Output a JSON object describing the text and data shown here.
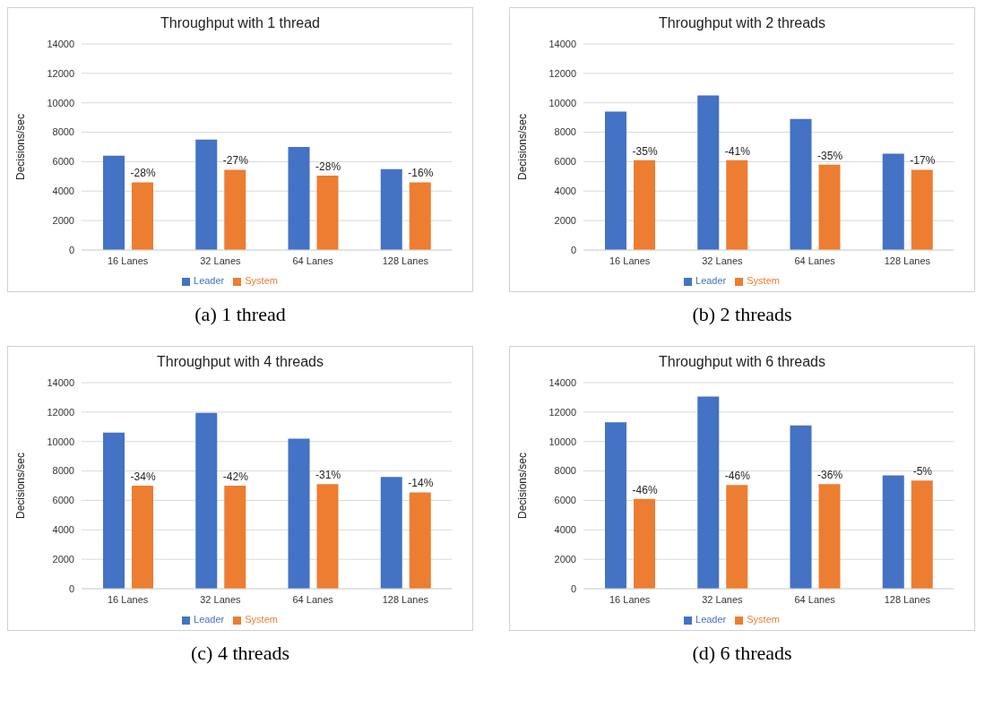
{
  "chart_data": [
    {
      "type": "bar",
      "title": "Throughput with 1 thread",
      "ylabel": "Decisions/sec",
      "categories": [
        "16 Lanes",
        "32 Lanes",
        "64 Lanes",
        "128 Lanes"
      ],
      "series": [
        {
          "name": "Leader",
          "color": "#4472c4",
          "values": [
            6400,
            7500,
            7000,
            5500
          ]
        },
        {
          "name": "System",
          "color": "#ed7d31",
          "values": [
            4600,
            5450,
            5050,
            4600
          ]
        }
      ],
      "ylim": [
        0,
        14000
      ],
      "yticks": [
        0,
        2000,
        4000,
        6000,
        8000,
        10000,
        12000,
        14000
      ],
      "grid": "y",
      "legend": "bottom",
      "annotations": [
        {
          "text": "-28%",
          "x": "16 Lanes",
          "y": 4600
        },
        {
          "text": "-27%",
          "x": "32 Lanes",
          "y": 5450
        },
        {
          "text": "-28%",
          "x": "64 Lanes",
          "y": 5050
        },
        {
          "text": "-16%",
          "x": "128 Lanes",
          "y": 4600
        },
        "(a) 1 thread"
      ]
    },
    {
      "type": "bar",
      "title": "Throughput with 2 threads",
      "ylabel": "Decisions/sec",
      "categories": [
        "16 Lanes",
        "32 Lanes",
        "64 Lanes",
        "128 Lanes"
      ],
      "series": [
        {
          "name": "Leader",
          "color": "#4472c4",
          "values": [
            9400,
            10500,
            8900,
            6550
          ]
        },
        {
          "name": "System",
          "color": "#ed7d31",
          "values": [
            6100,
            6100,
            5800,
            5450
          ]
        }
      ],
      "ylim": [
        0,
        14000
      ],
      "yticks": [
        0,
        2000,
        4000,
        6000,
        8000,
        10000,
        12000,
        14000
      ],
      "grid": "y",
      "legend": "bottom",
      "annotations": [
        {
          "text": "-35%",
          "x": "16 Lanes",
          "y": 6100
        },
        {
          "text": "-41%",
          "x": "32 Lanes",
          "y": 6100
        },
        {
          "text": "-35%",
          "x": "64 Lanes",
          "y": 5800
        },
        {
          "text": "-17%",
          "x": "128 Lanes",
          "y": 5450
        },
        "(b) 2 threads"
      ]
    },
    {
      "type": "bar",
      "title": "Throughput with 4 threads",
      "ylabel": "Decisions/sec",
      "categories": [
        "16 Lanes",
        "32 Lanes",
        "64 Lanes",
        "128 Lanes"
      ],
      "series": [
        {
          "name": "Leader",
          "color": "#4472c4",
          "values": [
            10600,
            11950,
            10200,
            7600
          ]
        },
        {
          "name": "System",
          "color": "#ed7d31",
          "values": [
            7000,
            7000,
            7100,
            6550
          ]
        }
      ],
      "ylim": [
        0,
        14000
      ],
      "yticks": [
        0,
        2000,
        4000,
        6000,
        8000,
        10000,
        12000,
        14000
      ],
      "grid": "y",
      "legend": "bottom",
      "annotations": [
        {
          "text": "-34%",
          "x": "16 Lanes",
          "y": 7000
        },
        {
          "text": "-42%",
          "x": "32 Lanes",
          "y": 7000
        },
        {
          "text": "-31%",
          "x": "64 Lanes",
          "y": 7100
        },
        {
          "text": "-14%",
          "x": "128 Lanes",
          "y": 6550
        },
        "(c) 4 threads"
      ]
    },
    {
      "type": "bar",
      "title": "Throughput with 6 threads",
      "ylabel": "Decisions/sec",
      "categories": [
        "16 Lanes",
        "32 Lanes",
        "64 Lanes",
        "128 Lanes"
      ],
      "series": [
        {
          "name": "Leader",
          "color": "#4472c4",
          "values": [
            11300,
            13050,
            11100,
            7700
          ]
        },
        {
          "name": "System",
          "color": "#ed7d31",
          "values": [
            6100,
            7050,
            7100,
            7350
          ]
        }
      ],
      "ylim": [
        0,
        14000
      ],
      "yticks": [
        0,
        2000,
        4000,
        6000,
        8000,
        10000,
        12000,
        14000
      ],
      "grid": "y",
      "legend": "bottom",
      "annotations": [
        {
          "text": "-46%",
          "x": "16 Lanes",
          "y": 6100
        },
        {
          "text": "-46%",
          "x": "32 Lanes",
          "y": 7050
        },
        {
          "text": "-36%",
          "x": "64 Lanes",
          "y": 7100
        },
        {
          "text": "-5%",
          "x": "128 Lanes",
          "y": 7350
        },
        "(d) 6 threads"
      ]
    }
  ]
}
